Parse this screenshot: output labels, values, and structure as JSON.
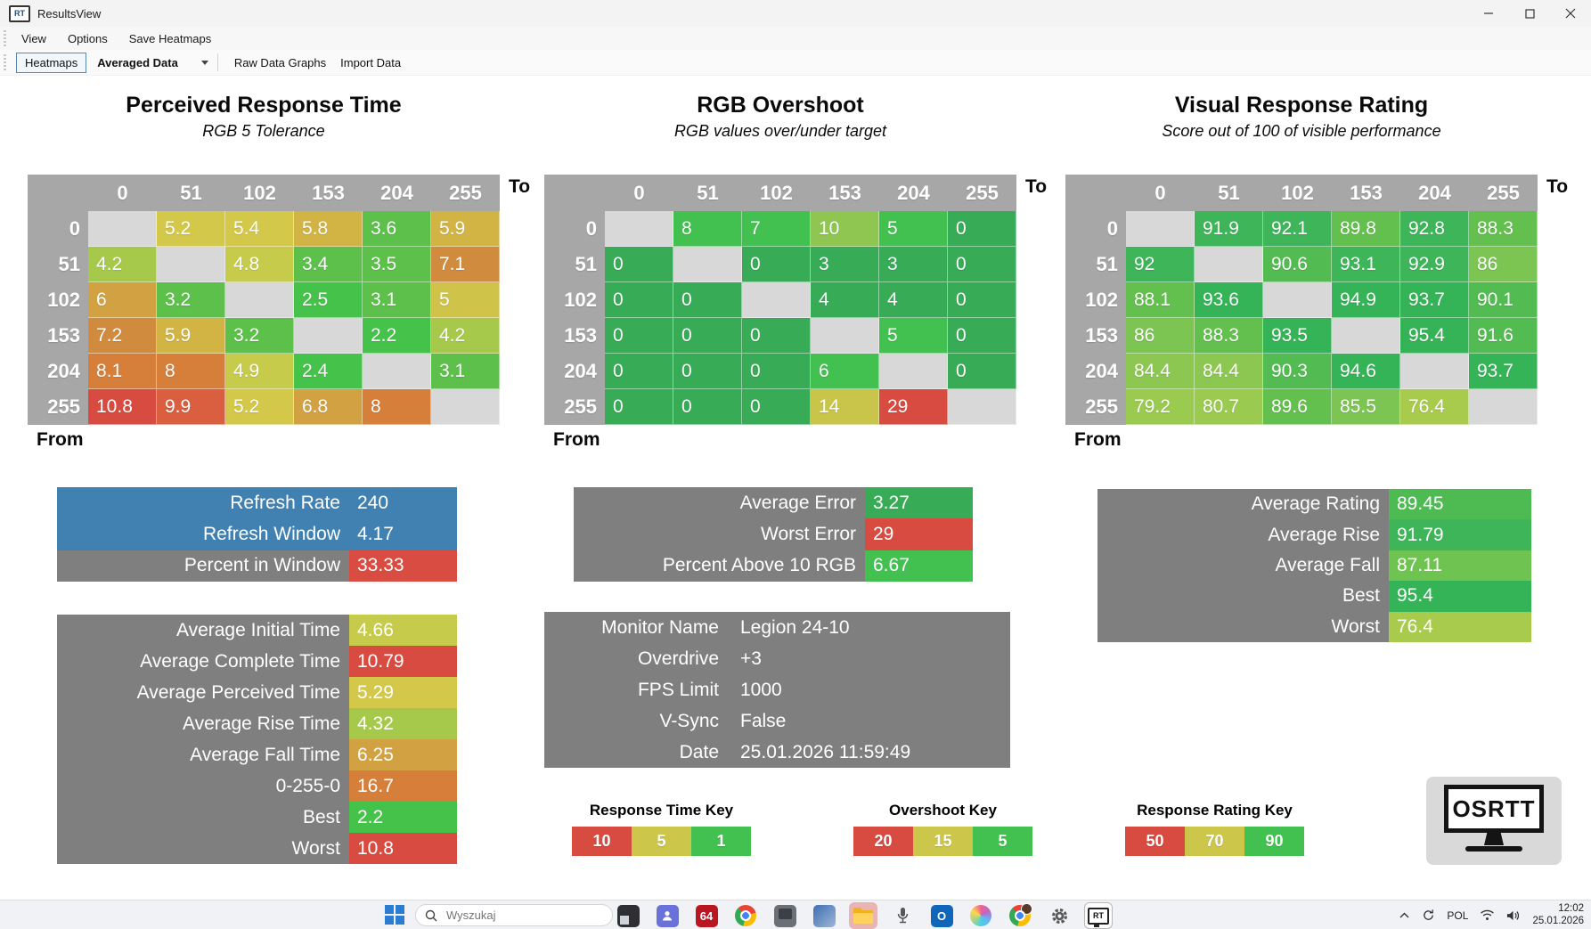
{
  "window": {
    "title": "ResultsView",
    "icon_text": "RT"
  },
  "menu": {
    "items": [
      "View",
      "Options",
      "Save Heatmaps"
    ]
  },
  "toolbar": {
    "tab": "Heatmaps",
    "dropdown": "Averaged Data",
    "link1": "Raw Data Graphs",
    "link2": "Import Data"
  },
  "labels": {
    "to": "To",
    "from": "From"
  },
  "heatmaps": [
    {
      "title": "Perceived Response Time",
      "subtitle": "RGB 5 Tolerance",
      "cols": [
        "0",
        "51",
        "102",
        "153",
        "204",
        "255"
      ],
      "rows": [
        "0",
        "51",
        "102",
        "153",
        "204",
        "255"
      ],
      "cells": [
        [
          null,
          [
            "5.2",
            "#d3c84a"
          ],
          [
            "5.4",
            "#d3c84a"
          ],
          [
            "5.8",
            "#d2b445"
          ],
          [
            "3.6",
            "#5cc04a"
          ],
          [
            "5.9",
            "#d2b445"
          ]
        ],
        [
          [
            "4.2",
            "#a6c94c"
          ],
          null,
          [
            "4.8",
            "#c6cb4b"
          ],
          [
            "3.4",
            "#5cc04a"
          ],
          [
            "3.5",
            "#5cc04a"
          ],
          [
            "7.1",
            "#d08b3e"
          ]
        ],
        [
          [
            "6",
            "#d2a242"
          ],
          [
            "3.2",
            "#5cc04a"
          ],
          null,
          [
            "2.5",
            "#45c24a"
          ],
          [
            "3.1",
            "#5cc04a"
          ],
          [
            "5",
            "#cfc34a"
          ]
        ],
        [
          [
            "7.2",
            "#d08b3e"
          ],
          [
            "5.9",
            "#d2b445"
          ],
          [
            "3.2",
            "#5cc04a"
          ],
          null,
          [
            "2.2",
            "#45c24a"
          ],
          [
            "4.2",
            "#a6c94c"
          ]
        ],
        [
          [
            "8.1",
            "#d57f3b"
          ],
          [
            "8",
            "#d57f3b"
          ],
          [
            "4.9",
            "#c6cb4b"
          ],
          [
            "2.4",
            "#45c24a"
          ],
          null,
          [
            "3.1",
            "#5cc04a"
          ]
        ],
        [
          [
            "10.8",
            "#d84b41"
          ],
          [
            "9.9",
            "#d95f40"
          ],
          [
            "5.2",
            "#d3c84a"
          ],
          [
            "6.8",
            "#d2a242"
          ],
          [
            "8",
            "#d57f3b"
          ],
          null
        ]
      ]
    },
    {
      "title": "RGB Overshoot",
      "subtitle": "RGB values over/under target",
      "cols": [
        "0",
        "51",
        "102",
        "153",
        "204",
        "255"
      ],
      "rows": [
        "0",
        "51",
        "102",
        "153",
        "204",
        "255"
      ],
      "cells": [
        [
          null,
          [
            "8",
            "#42c150"
          ],
          [
            "7",
            "#42c150"
          ],
          [
            "10",
            "#8fc651"
          ],
          [
            "5",
            "#42c150"
          ],
          [
            "0",
            "#38ab57"
          ]
        ],
        [
          [
            "0",
            "#38ab57"
          ],
          null,
          [
            "0",
            "#38ab57"
          ],
          [
            "3",
            "#38ab57"
          ],
          [
            "3",
            "#38ab57"
          ],
          [
            "0",
            "#38ab57"
          ]
        ],
        [
          [
            "0",
            "#38ab57"
          ],
          [
            "0",
            "#38ab57"
          ],
          null,
          [
            "4",
            "#38ab57"
          ],
          [
            "4",
            "#38ab57"
          ],
          [
            "0",
            "#38ab57"
          ]
        ],
        [
          [
            "0",
            "#38ab57"
          ],
          [
            "0",
            "#38ab57"
          ],
          [
            "0",
            "#38ab57"
          ],
          null,
          [
            "5",
            "#42c150"
          ],
          [
            "0",
            "#38ab57"
          ]
        ],
        [
          [
            "0",
            "#38ab57"
          ],
          [
            "0",
            "#38ab57"
          ],
          [
            "0",
            "#38ab57"
          ],
          [
            "6",
            "#42c150"
          ],
          null,
          [
            "0",
            "#38ab57"
          ]
        ],
        [
          [
            "0",
            "#38ab57"
          ],
          [
            "0",
            "#38ab57"
          ],
          [
            "0",
            "#38ab57"
          ],
          [
            "14",
            "#c9c44a"
          ],
          [
            "29",
            "#d84b41"
          ],
          null
        ]
      ]
    },
    {
      "title": "Visual Response Rating",
      "subtitle": "Score out of 100 of visible performance",
      "cols": [
        "0",
        "51",
        "102",
        "153",
        "204",
        "255"
      ],
      "rows": [
        "0",
        "51",
        "102",
        "153",
        "204",
        "255"
      ],
      "cells": [
        [
          null,
          [
            "91.9",
            "#3db558"
          ],
          [
            "92.1",
            "#3db558"
          ],
          [
            "89.8",
            "#63c04e"
          ],
          [
            "92.8",
            "#3db558"
          ],
          [
            "88.3",
            "#63c04e"
          ]
        ],
        [
          [
            "92",
            "#3db558"
          ],
          null,
          [
            "90.6",
            "#52bb51"
          ],
          [
            "93.1",
            "#3db558"
          ],
          [
            "92.9",
            "#3db558"
          ],
          [
            "86",
            "#7cc553"
          ]
        ],
        [
          [
            "88.1",
            "#63c04e"
          ],
          [
            "93.6",
            "#35b457"
          ],
          null,
          [
            "94.9",
            "#35b457"
          ],
          [
            "93.7",
            "#35b457"
          ],
          [
            "90.1",
            "#52bb51"
          ]
        ],
        [
          [
            "86",
            "#7cc553"
          ],
          [
            "88.3",
            "#63c04e"
          ],
          [
            "93.5",
            "#35b457"
          ],
          null,
          [
            "95.4",
            "#35b457"
          ],
          [
            "91.6",
            "#52bb51"
          ]
        ],
        [
          [
            "84.4",
            "#8cc751"
          ],
          [
            "84.4",
            "#8cc751"
          ],
          [
            "90.3",
            "#52bb51"
          ],
          [
            "94.6",
            "#35b457"
          ],
          null,
          [
            "93.7",
            "#35b457"
          ]
        ],
        [
          [
            "79.2",
            "#9aca4f"
          ],
          [
            "80.7",
            "#9aca4f"
          ],
          [
            "89.6",
            "#63c04e"
          ],
          [
            "85.5",
            "#7cc553"
          ],
          [
            "76.4",
            "#a8cb4d"
          ],
          null
        ]
      ]
    }
  ],
  "refresh_box": {
    "rows": [
      {
        "l": "Refresh Rate",
        "v": "240",
        "lbg": "#4181b2",
        "vbg": "#4181b2"
      },
      {
        "l": "Refresh Window",
        "v": "4.17",
        "lbg": "#4181b2",
        "vbg": "#4181b2"
      },
      {
        "l": "Percent in Window",
        "v": "33.33",
        "lbg": "#7f7f7f",
        "vbg": "#d84c41"
      }
    ]
  },
  "time_stats": {
    "rows": [
      {
        "l": "Average Initial Time",
        "v": "4.66",
        "lbg": "#7f7f7f",
        "vbg": "#c6cb4b"
      },
      {
        "l": "Average Complete Time",
        "v": "10.79",
        "lbg": "#7f7f7f",
        "vbg": "#d84b41"
      },
      {
        "l": "Average Perceived Time",
        "v": "5.29",
        "lbg": "#7f7f7f",
        "vbg": "#d3c84a"
      },
      {
        "l": "Average Rise Time",
        "v": "4.32",
        "lbg": "#7f7f7f",
        "vbg": "#a6c94c"
      },
      {
        "l": "Average Fall Time",
        "v": "6.25",
        "lbg": "#7f7f7f",
        "vbg": "#d2a242"
      },
      {
        "l": "0-255-0",
        "v": "16.7",
        "lbg": "#7f7f7f",
        "vbg": "#d57f3b"
      },
      {
        "l": "Best",
        "v": "2.2",
        "lbg": "#7f7f7f",
        "vbg": "#45c24a"
      },
      {
        "l": "Worst",
        "v": "10.8",
        "lbg": "#7f7f7f",
        "vbg": "#d84b41"
      }
    ]
  },
  "error_box": {
    "rows": [
      {
        "l": "Average Error",
        "v": "3.27",
        "lbg": "#7f7f7f",
        "vbg": "#38ab57"
      },
      {
        "l": "Worst Error",
        "v": "29",
        "lbg": "#7f7f7f",
        "vbg": "#d84b41"
      },
      {
        "l": "Percent Above 10 RGB",
        "v": "6.67",
        "lbg": "#7f7f7f",
        "vbg": "#42c150"
      }
    ]
  },
  "monitor_box": {
    "rows": [
      {
        "l": "Monitor Name",
        "v": "Legion 24-10",
        "lbg": "#7f7f7f",
        "vbg": "#7f7f7f"
      },
      {
        "l": "Overdrive",
        "v": "+3",
        "lbg": "#7f7f7f",
        "vbg": "#7f7f7f"
      },
      {
        "l": "FPS Limit",
        "v": "1000",
        "lbg": "#7f7f7f",
        "vbg": "#7f7f7f"
      },
      {
        "l": "V-Sync",
        "v": "False",
        "lbg": "#7f7f7f",
        "vbg": "#7f7f7f"
      },
      {
        "l": "Date",
        "v": "25.01.2026 11:59:49",
        "lbg": "#7f7f7f",
        "vbg": "#7f7f7f"
      }
    ]
  },
  "rating_box": {
    "rows": [
      {
        "l": "Average Rating",
        "v": "89.45",
        "lbg": "#7f7f7f",
        "vbg": "#4eba52"
      },
      {
        "l": "Average Rise",
        "v": "91.79",
        "lbg": "#7f7f7f",
        "vbg": "#3db558"
      },
      {
        "l": "Average Fall",
        "v": "87.11",
        "lbg": "#7f7f7f",
        "vbg": "#6fc350"
      },
      {
        "l": "Best",
        "v": "95.4",
        "lbg": "#7f7f7f",
        "vbg": "#35b457"
      },
      {
        "l": "Worst",
        "v": "76.4",
        "lbg": "#7f7f7f",
        "vbg": "#a8cb4d"
      }
    ]
  },
  "keys": [
    {
      "title": "Response Time Key",
      "cells": [
        [
          "10",
          "#d84b41"
        ],
        [
          "5",
          "#ccc74b"
        ],
        [
          "1",
          "#42c150"
        ]
      ]
    },
    {
      "title": "Overshoot Key",
      "cells": [
        [
          "20",
          "#d84b41"
        ],
        [
          "15",
          "#ccc74b"
        ],
        [
          "5",
          "#42c150"
        ]
      ]
    },
    {
      "title": "Response Rating Key",
      "cells": [
        [
          "50",
          "#d84b41"
        ],
        [
          "70",
          "#ccc74b"
        ],
        [
          "90",
          "#42c150"
        ]
      ]
    }
  ],
  "logo": {
    "text": "OSRTT",
    "small": "RT"
  },
  "taskbar": {
    "search_placeholder": "Wyszukaj",
    "apps": [
      {
        "name": "app-window",
        "type": "dark"
      },
      {
        "name": "teams",
        "type": "teams"
      },
      {
        "name": "afterburner",
        "type": "label",
        "label": "64",
        "bg": "#b91622"
      },
      {
        "name": "chrome",
        "type": "chrome"
      },
      {
        "name": "recorder",
        "type": "device"
      },
      {
        "name": "toolbox",
        "type": "toolbox"
      },
      {
        "name": "file-explorer",
        "type": "folder",
        "hl": "pink"
      },
      {
        "name": "microphone",
        "type": "mic"
      },
      {
        "name": "outlook",
        "type": "label",
        "label": "O",
        "bg": "#1066b8"
      },
      {
        "name": "media",
        "type": "swirl"
      },
      {
        "name": "chrome-profile",
        "type": "chrome-profile"
      },
      {
        "name": "settings",
        "type": "gear"
      },
      {
        "name": "osrtt",
        "type": "osrtt",
        "hl": "box"
      }
    ],
    "tray": {
      "lang": "POL",
      "time": "12:02",
      "date": "25.01.2026"
    }
  }
}
